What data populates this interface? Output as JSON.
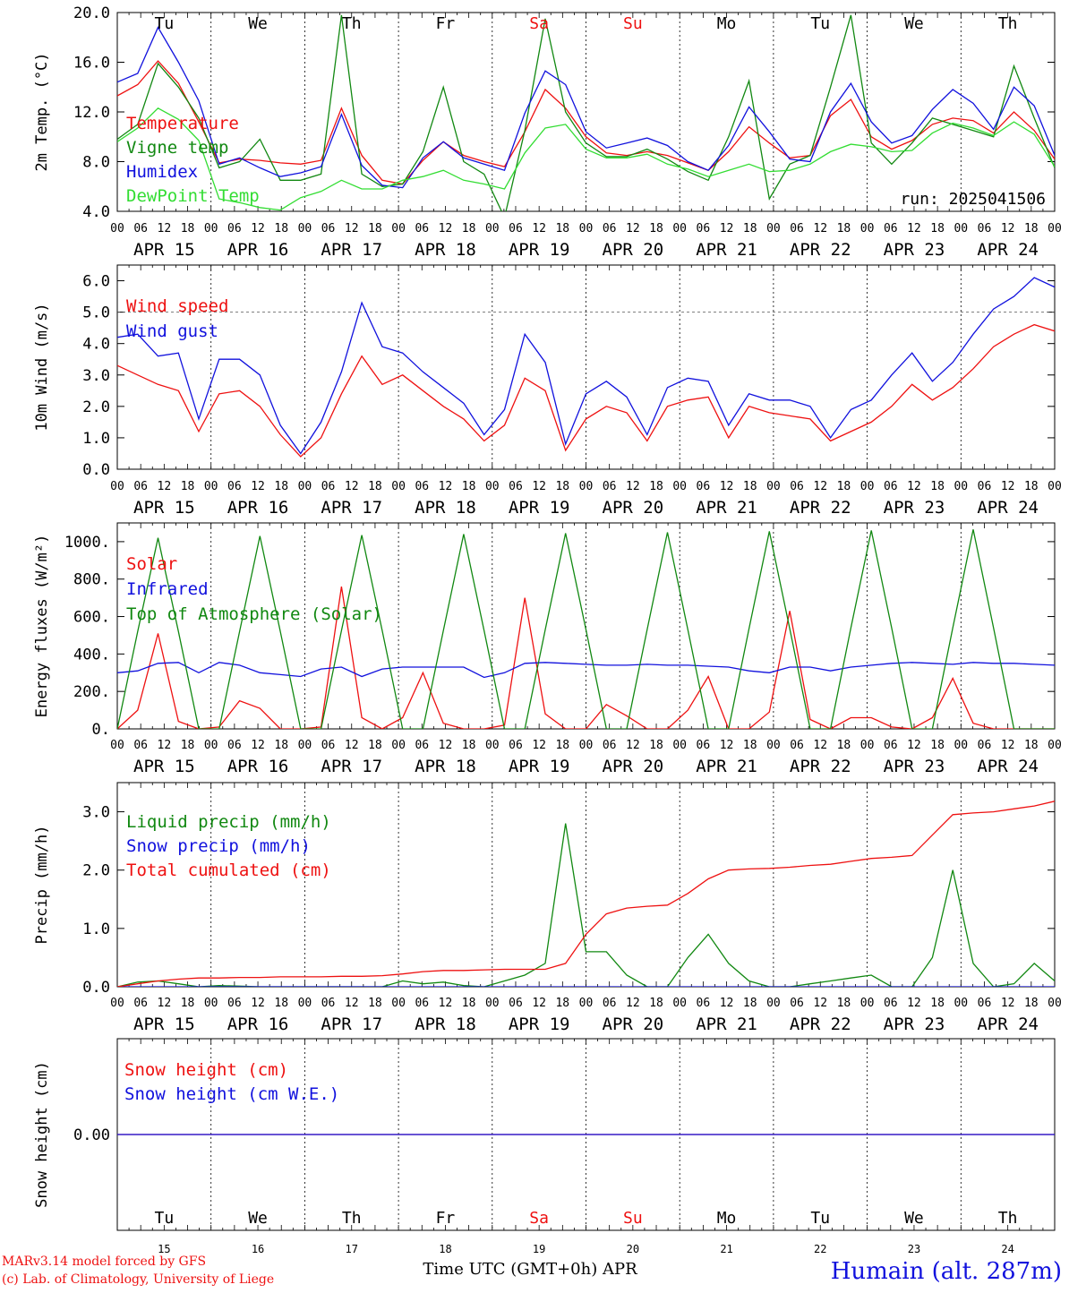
{
  "colors": {
    "red": "#ee1111",
    "green": "#118811",
    "blue": "#1111dd",
    "light_green": "#33dd33",
    "axis": "#000000"
  },
  "days": [
    "Tu",
    "We",
    "Th",
    "Fr",
    "Sa",
    "Su",
    "Mo",
    "Tu",
    "We",
    "Th"
  ],
  "weekend_days": [
    4,
    5
  ],
  "date_labels": [
    "APR 15",
    "APR 16",
    "APR 17",
    "APR 18",
    "APR 19",
    "APR 20",
    "APR 21",
    "APR 22",
    "APR 23",
    "APR 24"
  ],
  "day_numbers": [
    "15",
    "16",
    "17",
    "18",
    "19",
    "20",
    "21",
    "22",
    "23",
    "24"
  ],
  "hour_ticks": [
    "00",
    "06",
    "12",
    "18"
  ],
  "run_label": "run: 2025041506",
  "footer": {
    "model": "MARv3.14 model forced by GFS",
    "credit": "(c) Lab. of Climatology, University of Liege",
    "axis_label": "Time UTC (GMT+0h) APR",
    "station": "Humain (alt. 287m)"
  },
  "chart_data": [
    {
      "type": "line",
      "ylabel": "2m Temp. (°C)",
      "ylim": [
        4,
        20
      ],
      "y_ticks": [
        "4.0",
        "8.0",
        "12.0",
        "16.0",
        "20.0"
      ],
      "x": "hours since APR 15 00 UTC, every 6h",
      "series": [
        {
          "name": "Temperature",
          "color": "red",
          "values": [
            13.3,
            14.2,
            16.1,
            14.3,
            11.2,
            7.9,
            8.2,
            8.1,
            7.9,
            7.8,
            8.1,
            12.3,
            8.5,
            6.5,
            6.2,
            8.1,
            9.6,
            8.5,
            8.0,
            7.6,
            10.4,
            13.8,
            12.3,
            10.0,
            8.7,
            8.5,
            8.8,
            8.5,
            7.9,
            7.3,
            8.8,
            10.8,
            9.5,
            8.3,
            8.5,
            11.7,
            13.0,
            10.0,
            9.0,
            9.7,
            11.0,
            11.5,
            11.3,
            10.3,
            12.0,
            10.5,
            8.2
          ]
        },
        {
          "name": "Vigne temp",
          "color": "green",
          "values": [
            9.8,
            11.0,
            15.9,
            14.0,
            11.5,
            7.5,
            8.0,
            9.8,
            6.5,
            6.5,
            7.0,
            19.8,
            7.0,
            6.0,
            6.2,
            8.8,
            14.0,
            8.0,
            7.0,
            3.5,
            10.5,
            19.5,
            12.0,
            9.5,
            8.4,
            8.4,
            9.0,
            8.2,
            7.2,
            6.5,
            10.0,
            14.5,
            5.0,
            7.8,
            8.5,
            14.0,
            19.8,
            9.5,
            7.8,
            9.5,
            11.5,
            11.0,
            10.5,
            10.0,
            15.7,
            11.5,
            7.5
          ]
        },
        {
          "name": "Humidex",
          "color": "blue",
          "values": [
            14.4,
            15.1,
            18.8,
            16.0,
            12.9,
            7.8,
            8.3,
            7.5,
            6.8,
            7.1,
            7.6,
            11.8,
            7.7,
            6.1,
            5.9,
            8.3,
            9.6,
            8.3,
            7.8,
            7.3,
            11.9,
            15.3,
            14.2,
            10.4,
            9.1,
            9.5,
            9.9,
            9.3,
            8.0,
            7.3,
            9.3,
            12.4,
            10.4,
            8.2,
            8.0,
            12.0,
            14.3,
            11.2,
            9.5,
            10.1,
            12.2,
            13.8,
            12.7,
            10.6,
            14.0,
            12.5,
            8.5
          ]
        },
        {
          "name": "DewPoint Temp",
          "color": "light_green",
          "values": [
            9.6,
            10.7,
            12.3,
            11.4,
            9.7,
            5.0,
            4.7,
            4.3,
            4.1,
            5.1,
            5.6,
            6.5,
            5.8,
            5.8,
            6.5,
            6.8,
            7.3,
            6.5,
            6.2,
            5.8,
            8.7,
            10.7,
            11.0,
            9.0,
            8.3,
            8.3,
            8.6,
            7.8,
            7.4,
            6.8,
            7.3,
            7.8,
            7.2,
            7.3,
            7.8,
            8.8,
            9.4,
            9.2,
            8.8,
            8.9,
            10.3,
            11.1,
            10.7,
            10.1,
            11.2,
            10.2,
            7.6
          ]
        }
      ]
    },
    {
      "type": "line",
      "ylabel": "10m Wind (m/s)",
      "ylim": [
        0,
        6.5
      ],
      "y_ticks": [
        "0.0",
        "1.0",
        "2.0",
        "3.0",
        "4.0",
        "5.0",
        "6.0"
      ],
      "series": [
        {
          "name": "Wind speed",
          "color": "red",
          "values": [
            3.3,
            3.0,
            2.7,
            2.5,
            1.2,
            2.4,
            2.5,
            2.0,
            1.1,
            0.4,
            1.0,
            2.4,
            3.6,
            2.7,
            3.0,
            2.5,
            2.0,
            1.6,
            0.9,
            1.4,
            2.9,
            2.5,
            0.6,
            1.6,
            2.0,
            1.8,
            0.9,
            2.0,
            2.2,
            2.3,
            1.0,
            2.0,
            1.8,
            1.7,
            1.6,
            0.9,
            1.2,
            1.5,
            2.0,
            2.7,
            2.2,
            2.6,
            3.2,
            3.9,
            4.3,
            4.6,
            4.4
          ]
        },
        {
          "name": "Wind gust",
          "color": "blue",
          "values": [
            4.2,
            4.3,
            3.6,
            3.7,
            1.6,
            3.5,
            3.5,
            3.0,
            1.4,
            0.5,
            1.5,
            3.1,
            5.3,
            3.9,
            3.7,
            3.1,
            2.6,
            2.1,
            1.1,
            1.9,
            4.3,
            3.4,
            0.8,
            2.4,
            2.8,
            2.3,
            1.1,
            2.6,
            2.9,
            2.8,
            1.4,
            2.4,
            2.2,
            2.2,
            2.0,
            1.0,
            1.9,
            2.2,
            3.0,
            3.7,
            2.8,
            3.4,
            4.3,
            5.1,
            5.5,
            6.1,
            5.8
          ]
        }
      ]
    },
    {
      "type": "line",
      "ylabel": "Energy fluxes (W/m²)",
      "ylim": [
        0,
        1100
      ],
      "y_ticks": [
        "0.",
        "200.",
        "400.",
        "600.",
        "800.",
        "1000."
      ],
      "series": [
        {
          "name": "Solar",
          "color": "red",
          "values": [
            0,
            100,
            510,
            40,
            0,
            10,
            150,
            110,
            0,
            0,
            10,
            760,
            60,
            0,
            60,
            300,
            30,
            0,
            0,
            20,
            700,
            80,
            0,
            0,
            130,
            70,
            0,
            0,
            100,
            280,
            0,
            0,
            90,
            630,
            50,
            0,
            60,
            60,
            10,
            0,
            60,
            270,
            30,
            0,
            0,
            0,
            0
          ]
        },
        {
          "name": "Infrared",
          "color": "blue",
          "values": [
            300,
            310,
            350,
            355,
            300,
            355,
            340,
            300,
            290,
            280,
            320,
            330,
            280,
            320,
            330,
            330,
            330,
            330,
            275,
            300,
            350,
            355,
            350,
            345,
            340,
            340,
            345,
            340,
            340,
            335,
            330,
            310,
            300,
            330,
            330,
            310,
            330,
            340,
            350,
            355,
            350,
            345,
            355,
            350,
            350,
            345,
            340
          ]
        },
        {
          "name": "Top of Atmosphere (Solar)",
          "color": "green",
          "values": [
            0,
            520,
            1020,
            520,
            0,
            0,
            520,
            1030,
            520,
            0,
            0,
            525,
            1035,
            525,
            0,
            0,
            525,
            1040,
            525,
            0,
            0,
            530,
            1045,
            530,
            0,
            0,
            530,
            1050,
            530,
            0,
            0,
            535,
            1055,
            535,
            0,
            0,
            540,
            1060,
            540,
            0,
            0,
            540,
            1065,
            540,
            0,
            0,
            0
          ]
        }
      ]
    },
    {
      "type": "line",
      "ylabel": "Precip (mm/h)",
      "ylim": [
        0,
        3.5
      ],
      "y_ticks": [
        "0.0",
        "1.0",
        "2.0",
        "3.0"
      ],
      "series": [
        {
          "name": "Liquid precip (mm/h)",
          "color": "green",
          "values": [
            0,
            0.08,
            0.1,
            0.05,
            0,
            0.02,
            0.01,
            0,
            0,
            0,
            0,
            0,
            0,
            0,
            0.1,
            0.05,
            0.08,
            0.02,
            0,
            0.1,
            0.2,
            0.4,
            2.8,
            0.6,
            0.6,
            0.2,
            0,
            0,
            0.5,
            0.9,
            0.4,
            0.1,
            0,
            0,
            0.05,
            0.1,
            0.15,
            0.2,
            0,
            0,
            0.5,
            2.0,
            0.4,
            0,
            0.05,
            0.4,
            0.1
          ]
        },
        {
          "name": "Snow precip (mm/h)",
          "color": "blue",
          "values": [
            0,
            0,
            0,
            0,
            0,
            0,
            0,
            0,
            0,
            0,
            0,
            0,
            0,
            0,
            0,
            0,
            0,
            0,
            0,
            0,
            0,
            0,
            0,
            0,
            0,
            0,
            0,
            0,
            0,
            0,
            0,
            0,
            0,
            0,
            0,
            0,
            0,
            0,
            0,
            0,
            0,
            0,
            0,
            0,
            0,
            0,
            0
          ]
        },
        {
          "name": "Total cumulated (cm)",
          "color": "red",
          "values": [
            0,
            0.05,
            0.1,
            0.13,
            0.15,
            0.15,
            0.16,
            0.16,
            0.17,
            0.17,
            0.17,
            0.18,
            0.18,
            0.19,
            0.22,
            0.26,
            0.28,
            0.28,
            0.29,
            0.3,
            0.3,
            0.3,
            0.4,
            0.9,
            1.25,
            1.35,
            1.38,
            1.4,
            1.6,
            1.85,
            2.0,
            2.02,
            2.03,
            2.05,
            2.08,
            2.1,
            2.15,
            2.2,
            2.22,
            2.25,
            2.6,
            2.95,
            2.98,
            3.0,
            3.05,
            3.1,
            3.18
          ]
        }
      ]
    },
    {
      "type": "line",
      "ylabel": "Snow height (cm)",
      "ylim": [
        -1,
        1
      ],
      "y_ticks": [
        "0.00"
      ],
      "series": [
        {
          "name": "Snow height (cm)",
          "color": "red",
          "values": [
            0,
            0
          ]
        },
        {
          "name": "Snow height (cm W.E.)",
          "color": "blue",
          "values": [
            0,
            0
          ]
        }
      ]
    }
  ]
}
